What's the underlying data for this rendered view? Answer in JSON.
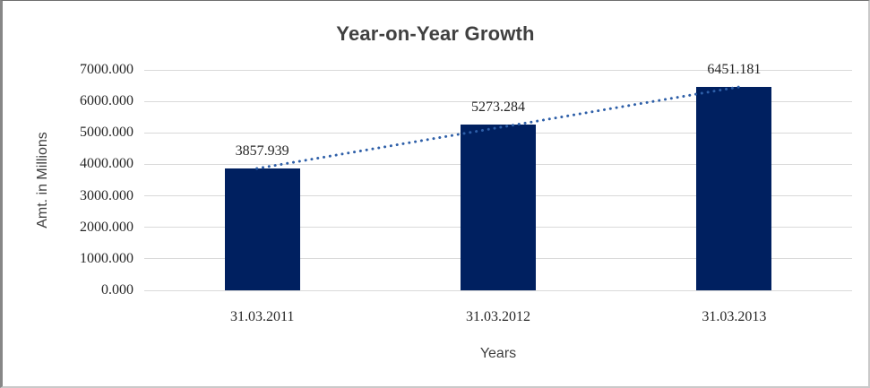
{
  "chart_data": {
    "type": "bar",
    "title": "Year-on-Year Growth",
    "xlabel": "Years",
    "ylabel": "Amt. in Millions",
    "categories": [
      "31.03.2011",
      "31.03.2012",
      "31.03.2013"
    ],
    "values": [
      3857.939,
      5273.284,
      6451.181
    ],
    "value_labels": [
      "3857.939",
      "5273.284",
      "6451.181"
    ],
    "ylim": [
      0,
      7000
    ],
    "y_tick_labels": [
      "0.000",
      "1000.000",
      "2000.000",
      "3000.000",
      "4000.000",
      "5000.000",
      "6000.000",
      "7000.000"
    ],
    "grid": true,
    "legend_position": "none",
    "bar_color": "#002060",
    "gridline_color": "#d9d9d9",
    "trendline": {
      "type": "linear",
      "style": "dotted",
      "color": "#2e5fa8"
    }
  }
}
